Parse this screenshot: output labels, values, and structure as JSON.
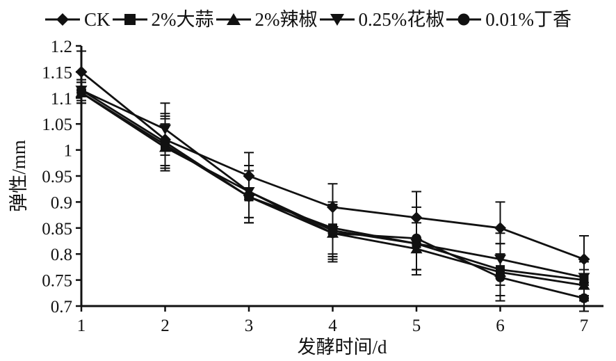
{
  "chart_data": {
    "type": "line",
    "title": "",
    "xlabel": "发酵时间/d",
    "ylabel": "弹性/mm",
    "grid": false,
    "legend_position": "top",
    "line_color": "#111111",
    "background": "#ffffff",
    "x": [
      1,
      2,
      3,
      4,
      5,
      6,
      7
    ],
    "x_tick_labels": [
      "1",
      "2",
      "3",
      "4",
      "5",
      "6",
      "7"
    ],
    "xlim": [
      1,
      7.25
    ],
    "ylim": [
      0.7,
      1.2
    ],
    "y_tick_values": [
      0.7,
      0.75,
      0.8,
      0.85,
      0.9,
      0.95,
      1,
      1.05,
      1.1,
      1.15,
      1.2
    ],
    "y_tick_labels": [
      "0.7",
      "0.75",
      "0.8",
      "0.85",
      "0.9",
      "0.95",
      "1",
      "1.05",
      "1.1",
      "1.15",
      "1.2"
    ],
    "series": [
      {
        "name": "CK",
        "marker": "diamond",
        "values": [
          1.15,
          1.02,
          0.95,
          0.89,
          0.87,
          0.85,
          0.79
        ],
        "errors": [
          0.04,
          0.05,
          0.045,
          0.045,
          0.05,
          0.05,
          0.045
        ]
      },
      {
        "name": "2%大蒜",
        "marker": "square",
        "values": [
          1.11,
          1.01,
          0.91,
          0.85,
          0.82,
          0.77,
          0.75
        ],
        "errors": [
          0.02,
          0.05,
          0.05,
          0.05,
          0.05,
          0.05,
          0.035
        ]
      },
      {
        "name": "2%辣椒",
        "marker": "triangle-up",
        "values": [
          1.11,
          1.005,
          0.92,
          0.84,
          0.81,
          0.765,
          0.74
        ],
        "errors": [
          0.02,
          0.045,
          0.05,
          0.05,
          0.05,
          0.055,
          0.03
        ]
      },
      {
        "name": "0.25%花椒",
        "marker": "triangle-down",
        "values": [
          1.115,
          1.04,
          0.92,
          0.845,
          0.82,
          0.79,
          0.755
        ],
        "errors": [
          0.02,
          0.05,
          0.05,
          0.05,
          0.05,
          0.05,
          0.035
        ]
      },
      {
        "name": "0.01%丁香",
        "marker": "circle",
        "values": [
          1.115,
          1.015,
          0.91,
          0.84,
          0.83,
          0.755,
          0.715
        ],
        "errors": [
          0.02,
          0.05,
          0.05,
          0.055,
          0.06,
          0.045,
          0.025
        ]
      }
    ]
  }
}
